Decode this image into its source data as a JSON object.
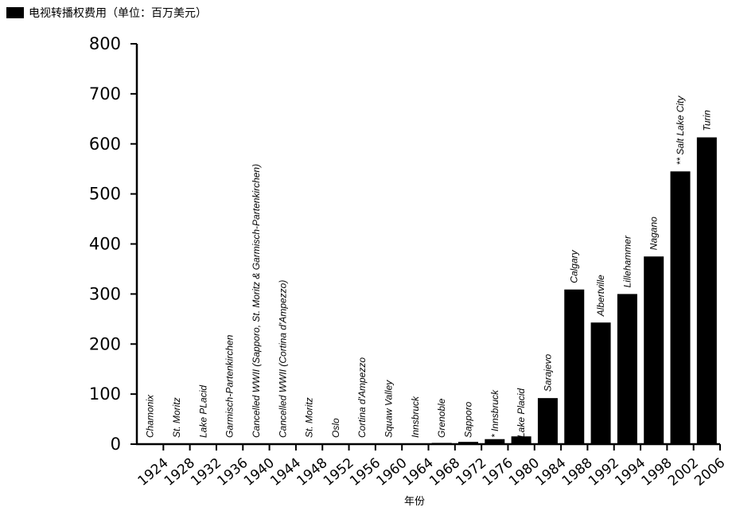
{
  "chart_data": {
    "type": "bar",
    "legend": [
      {
        "label": "电视转播权费用（单位：百万美元）",
        "color": "#000000"
      }
    ],
    "legend_placement": "top-left",
    "xlabel": "年份",
    "ylim": [
      0,
      800
    ],
    "yticks": [
      0,
      100,
      200,
      300,
      400,
      500,
      600,
      700,
      800
    ],
    "grid": false,
    "bar_color": "#000000",
    "categories": [
      "1924",
      "1928",
      "1932",
      "1936",
      "1940",
      "1944",
      "1948",
      "1952",
      "1956",
      "1960",
      "1964",
      "1968",
      "1972",
      "1976",
      "1980",
      "1984",
      "1988",
      "1992",
      "1994",
      "1998",
      "2002",
      "2006"
    ],
    "annotations": [
      "Chamonix",
      "St. Moritz",
      "Lake PLacid",
      "Garmisch-Partenkirchen",
      "Cancelled WWII (Sapporo, St. Moritz & Garmisch-Partenkirchen)",
      "Cancelled WWII (Cortina d'Ampezzo)",
      "St. Moritz",
      "Oslo",
      "Cortina d'Ampezzo",
      "Squaw Valley",
      "Innsbruck",
      "Grenoble",
      "Sapporo",
      "* Innsbruck",
      "Lake Placid",
      "Sarajevo",
      "Calgary",
      "Albertville",
      "Lillehammer",
      "Nagano",
      "** Salt Lake City",
      "Turin"
    ],
    "values": [
      0,
      0,
      0,
      0,
      0,
      0,
      0,
      0,
      0,
      0,
      0,
      2.5,
      4.5,
      10,
      15.5,
      92,
      309,
      243,
      300,
      375,
      545,
      613
    ]
  }
}
